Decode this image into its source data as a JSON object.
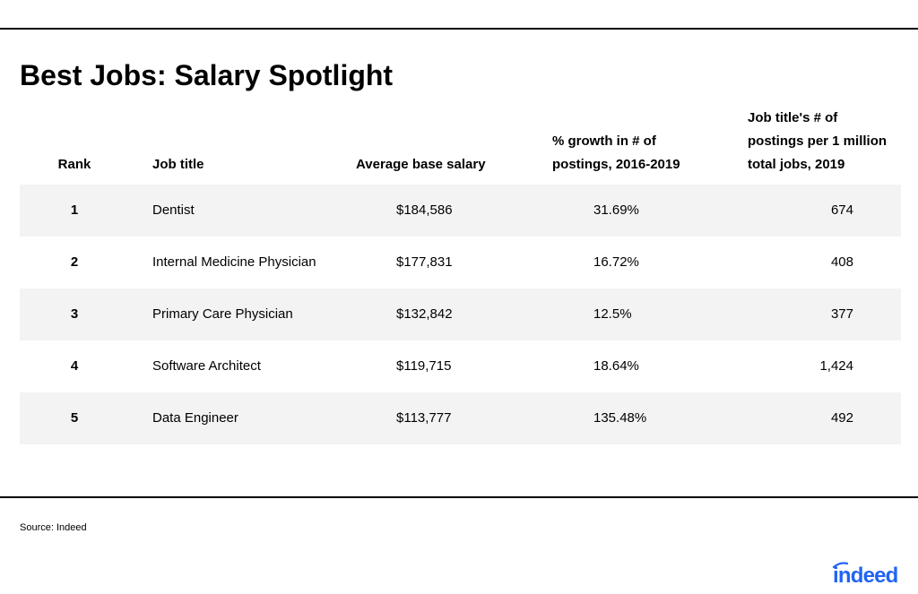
{
  "title": "Best Jobs: Salary Spotlight",
  "headers": {
    "rank": "Rank",
    "job_title": "Job title",
    "salary": "Average base salary",
    "growth_line1": "% growth in # of",
    "growth_line2": "postings, 2016-2019",
    "postings_line1": "Job title's # of",
    "postings_line2": "postings per 1 million",
    "postings_line3": "total jobs, 2019"
  },
  "rows": [
    {
      "rank": "1",
      "job_title": "Dentist",
      "salary": "$184,586",
      "growth": "31.69%",
      "postings": "674"
    },
    {
      "rank": "2",
      "job_title": "Internal Medicine Physician",
      "salary": "$177,831",
      "growth": "16.72%",
      "postings": "408"
    },
    {
      "rank": "3",
      "job_title": "Primary Care Physician",
      "salary": "$132,842",
      "growth": "12.5%",
      "postings": "377"
    },
    {
      "rank": "4",
      "job_title": "Software Architect",
      "salary": "$119,715",
      "growth": "18.64%",
      "postings": "1,424"
    },
    {
      "rank": "5",
      "job_title": "Data Engineer",
      "salary": "$113,777",
      "growth": "135.48%",
      "postings": "492"
    }
  ],
  "source": "Source: Indeed",
  "logo": {
    "text": "indeed",
    "color": "#2164f3"
  },
  "colors": {
    "row_shade": "#f3f3f3",
    "rule": "#000000"
  }
}
